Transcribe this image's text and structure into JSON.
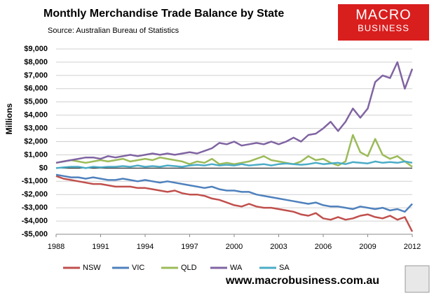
{
  "chart_data": {
    "type": "line",
    "title": "Monthly Merchandise Trade Balance by State",
    "subtitle": "Source:  Australian Bureau of Statistics",
    "logo": [
      "MACRO",
      "BUSINESS"
    ],
    "footer": "www.macrobusiness.com.au",
    "y_label": "Millions",
    "xlim": [
      1988,
      2012
    ],
    "xticks": [
      1988,
      1991,
      1994,
      1997,
      2000,
      2003,
      2006,
      2009,
      2012
    ],
    "ylim": [
      -5000,
      9000
    ],
    "yticks": [
      {
        "value": -5000,
        "label": "-$5,000"
      },
      {
        "value": -4000,
        "label": "-$4,000"
      },
      {
        "value": -3000,
        "label": "-$3,000"
      },
      {
        "value": -2000,
        "label": "-$2,000"
      },
      {
        "value": -1000,
        "label": "-$1,000"
      },
      {
        "value": 0,
        "label": "$0"
      },
      {
        "value": 1000,
        "label": "$1,000"
      },
      {
        "value": 2000,
        "label": "$2,000"
      },
      {
        "value": 3000,
        "label": "$3,000"
      },
      {
        "value": 4000,
        "label": "$4,000"
      },
      {
        "value": 5000,
        "label": "$5,000"
      },
      {
        "value": 6000,
        "label": "$6,000"
      },
      {
        "value": 7000,
        "label": "$7,000"
      },
      {
        "value": 8000,
        "label": "$8,000"
      },
      {
        "value": 9000,
        "label": "$9,000"
      }
    ],
    "grid": true,
    "legend": "bottom",
    "x": [
      1988,
      1988.5,
      1989,
      1989.5,
      1990,
      1990.5,
      1991,
      1991.5,
      1992,
      1992.5,
      1993,
      1993.5,
      1994,
      1994.5,
      1995,
      1995.5,
      1996,
      1996.5,
      1997,
      1997.5,
      1998,
      1998.5,
      1999,
      1999.5,
      2000,
      2000.5,
      2001,
      2001.5,
      2002,
      2002.5,
      2003,
      2003.5,
      2004,
      2004.5,
      2005,
      2005.5,
      2006,
      2006.5,
      2007,
      2007.5,
      2008,
      2008.5,
      2009,
      2009.5,
      2010,
      2010.5,
      2011,
      2011.5,
      2012
    ],
    "series": [
      {
        "name": "NSW",
        "color": "#c0504d",
        "values": [
          -600,
          -800,
          -900,
          -1000,
          -1100,
          -1200,
          -1200,
          -1300,
          -1400,
          -1400,
          -1400,
          -1500,
          -1500,
          -1600,
          -1700,
          -1800,
          -1700,
          -1900,
          -2000,
          -2000,
          -2100,
          -2300,
          -2400,
          -2600,
          -2800,
          -2900,
          -2700,
          -2900,
          -3000,
          -3000,
          -3100,
          -3200,
          -3300,
          -3500,
          -3600,
          -3400,
          -3800,
          -3900,
          -3700,
          -3900,
          -3800,
          -3600,
          -3500,
          -3700,
          -3800,
          -3600,
          -3900,
          -3700,
          -4800
        ]
      },
      {
        "name": "VIC",
        "color": "#4f81bd",
        "values": [
          -500,
          -600,
          -700,
          -700,
          -800,
          -700,
          -800,
          -900,
          -900,
          -800,
          -900,
          -1000,
          -900,
          -1000,
          -1100,
          -1000,
          -1100,
          -1200,
          -1300,
          -1400,
          -1500,
          -1400,
          -1600,
          -1700,
          -1700,
          -1800,
          -1800,
          -2000,
          -2100,
          -2200,
          -2300,
          -2400,
          -2500,
          -2600,
          -2700,
          -2600,
          -2800,
          -2900,
          -2900,
          -3000,
          -3100,
          -2900,
          -3000,
          -3100,
          -3000,
          -3200,
          -3100,
          -3300,
          -2700
        ]
      },
      {
        "name": "QLD",
        "color": "#9bbb59",
        "values": [
          400,
          500,
          600,
          500,
          400,
          500,
          600,
          500,
          600,
          700,
          500,
          600,
          700,
          600,
          800,
          700,
          600,
          500,
          300,
          500,
          400,
          700,
          300,
          400,
          300,
          400,
          500,
          700,
          900,
          600,
          500,
          400,
          300,
          500,
          900,
          600,
          700,
          400,
          200,
          500,
          2500,
          1200,
          900,
          2200,
          1000,
          700,
          900,
          500,
          100
        ]
      },
      {
        "name": "WA",
        "color": "#8064a2",
        "values": [
          400,
          500,
          600,
          700,
          800,
          800,
          700,
          900,
          800,
          900,
          1000,
          900,
          1000,
          1100,
          1000,
          1100,
          1000,
          1100,
          1200,
          1100,
          1300,
          1500,
          1900,
          1800,
          2000,
          1700,
          1800,
          1900,
          1800,
          2000,
          1800,
          2000,
          2300,
          2000,
          2500,
          2600,
          3000,
          3500,
          2800,
          3500,
          4500,
          3800,
          4500,
          6500,
          7000,
          6800,
          8000,
          6000,
          7500
        ]
      },
      {
        "name": "SA",
        "color": "#4bacc6",
        "values": [
          0,
          50,
          100,
          100,
          0,
          100,
          50,
          100,
          100,
          150,
          100,
          200,
          100,
          150,
          100,
          200,
          150,
          100,
          200,
          250,
          200,
          300,
          200,
          250,
          200,
          300,
          200,
          250,
          300,
          200,
          300,
          350,
          300,
          250,
          300,
          400,
          300,
          350,
          400,
          300,
          450,
          400,
          350,
          500,
          400,
          450,
          400,
          500,
          400
        ]
      }
    ]
  }
}
